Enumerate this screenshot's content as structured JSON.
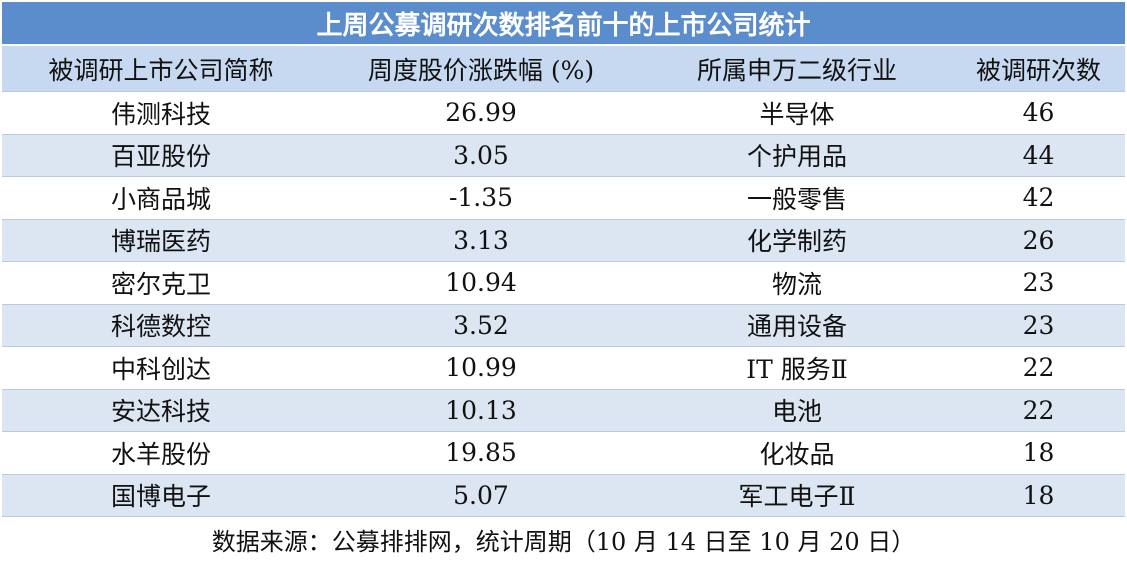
{
  "title": "上周公募调研次数排名前十的上市公司统计",
  "table": {
    "header": [
      "被调研上市公司简称",
      "周度股价涨跌幅 (%)",
      "所属申万二级行业",
      "被调研次数"
    ],
    "rows": [
      [
        "伟测科技",
        "26.99",
        "半导体",
        "46"
      ],
      [
        "百亚股份",
        "3.05",
        "个护用品",
        "44"
      ],
      [
        "小商品城",
        "-1.35",
        "一般零售",
        "42"
      ],
      [
        "博瑞医药",
        "3.13",
        "化学制药",
        "26"
      ],
      [
        "密尔克卫",
        "10.94",
        "物流",
        "23"
      ],
      [
        "科德数控",
        "3.52",
        "通用设备",
        "23"
      ],
      [
        "中科创达",
        "10.99",
        "IT 服务Ⅱ",
        "22"
      ],
      [
        "安达科技",
        "10.13",
        "电池",
        "22"
      ],
      [
        "水羊股份",
        "19.85",
        "化妆品",
        "18"
      ],
      [
        "国博电子",
        "5.07",
        "军工电子Ⅱ",
        "18"
      ]
    ]
  },
  "footer": "数据来源：公募排排网，统计周期（10 月 14 日至 10 月 20 日）"
}
